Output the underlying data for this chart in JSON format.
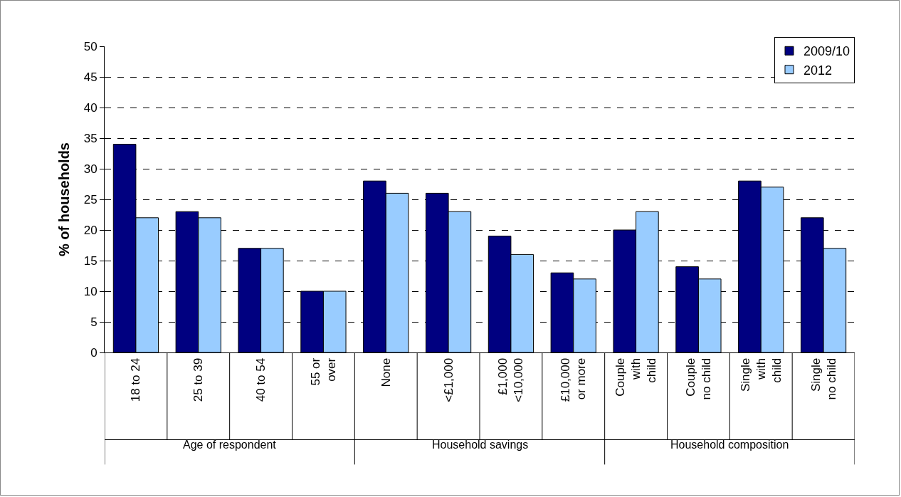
{
  "chart_data": {
    "type": "bar",
    "ylabel": "% of households",
    "categories": [
      "18 to 24",
      "25 to 39",
      "40 to 54",
      "55 or\nover",
      "None",
      "<£1,000",
      "£1,000\n<10,000",
      "£10,000\nor more",
      "Couple\nwith\nchild",
      "Couple\nno child",
      "Single\nwith\nchild",
      "Single\nno child"
    ],
    "series": [
      {
        "name": "2009/10",
        "color": "#000080",
        "values": [
          34,
          23,
          17,
          10,
          28,
          26,
          19,
          13,
          20,
          14,
          28,
          22
        ]
      },
      {
        "name": "2012",
        "color": "#99ccff",
        "values": [
          22,
          22,
          17,
          10,
          26,
          23,
          16,
          12,
          23,
          12,
          27,
          17
        ]
      }
    ],
    "annotations": [
      "Age of respondent",
      "Household savings",
      "Household composition"
    ],
    "ylim": [
      0,
      50
    ],
    "yticks": [
      0,
      5,
      10,
      15,
      20,
      25,
      30,
      35,
      40,
      45,
      50
    ],
    "grid": "y",
    "legend": "top right"
  }
}
